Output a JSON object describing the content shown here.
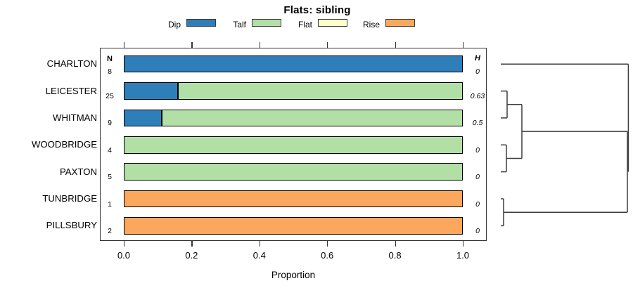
{
  "title": "Flats: sibling",
  "xlabel": "Proportion",
  "legend": [
    {
      "label": "Dip",
      "color": "#2e7fb9"
    },
    {
      "label": "Talf",
      "color": "#b2dfa5"
    },
    {
      "label": "Flat",
      "color": "#ffffcc"
    },
    {
      "label": "Rise",
      "color": "#fba85e"
    }
  ],
  "columns": {
    "n_header": "N",
    "h_header": "H"
  },
  "x_tick_labels": [
    "0.0",
    "0.2",
    "0.4",
    "0.6",
    "0.8",
    "1.0"
  ],
  "rows": [
    {
      "label": "CHARLTON",
      "n": "8",
      "h": "0",
      "segments": [
        {
          "cat": "Dip",
          "value": 1.0
        }
      ]
    },
    {
      "label": "LEICESTER",
      "n": "25",
      "h": "0.63",
      "segments": [
        {
          "cat": "Dip",
          "value": 0.16
        },
        {
          "cat": "Talf",
          "value": 0.84
        }
      ]
    },
    {
      "label": "WHITMAN",
      "n": "9",
      "h": "0.5",
      "segments": [
        {
          "cat": "Dip",
          "value": 0.111
        },
        {
          "cat": "Talf",
          "value": 0.889
        }
      ]
    },
    {
      "label": "WOODBRIDGE",
      "n": "4",
      "h": "0",
      "segments": [
        {
          "cat": "Talf",
          "value": 1.0
        }
      ]
    },
    {
      "label": "PAXTON",
      "n": "5",
      "h": "0",
      "segments": [
        {
          "cat": "Talf",
          "value": 1.0
        }
      ]
    },
    {
      "label": "TUNBRIDGE",
      "n": "1",
      "h": "0",
      "segments": [
        {
          "cat": "Rise",
          "value": 1.0
        }
      ]
    },
    {
      "label": "PILLSBURY",
      "n": "2",
      "h": "0",
      "segments": [
        {
          "cat": "Rise",
          "value": 1.0
        }
      ]
    }
  ],
  "chart_data": {
    "type": "bar",
    "orientation": "horizontal",
    "stacked": true,
    "title": "Flats: sibling",
    "xlabel": "Proportion",
    "xlim": [
      0,
      1
    ],
    "x_ticks": [
      0.0,
      0.2,
      0.4,
      0.6,
      0.8,
      1.0
    ],
    "grid": false,
    "legend_position": "top",
    "categories": [
      "CHARLTON",
      "LEICESTER",
      "WHITMAN",
      "WOODBRIDGE",
      "PAXTON",
      "TUNBRIDGE",
      "PILLSBURY"
    ],
    "N": [
      8,
      25,
      9,
      4,
      5,
      1,
      2
    ],
    "H": [
      0,
      0.63,
      0.5,
      0,
      0,
      0,
      0
    ],
    "series": [
      {
        "name": "Dip",
        "color": "#2e7fb9",
        "values": [
          1.0,
          0.16,
          0.111,
          0,
          0,
          0,
          0
        ]
      },
      {
        "name": "Talf",
        "color": "#b2dfa5",
        "values": [
          0,
          0.84,
          0.889,
          1.0,
          1.0,
          0,
          0
        ]
      },
      {
        "name": "Flat",
        "color": "#ffffcc",
        "values": [
          0,
          0,
          0,
          0,
          0,
          0,
          0
        ]
      },
      {
        "name": "Rise",
        "color": "#fba85e",
        "values": [
          0,
          0,
          0,
          0,
          0,
          1.0,
          1.0
        ]
      }
    ],
    "dendrogram": {
      "position": "right",
      "structure": "(CHARLTON,(((LEICESTER,WHITMAN),(WOODBRIDGE,PAXTON)),(TUNBRIDGE,PILLSBURY)))"
    }
  }
}
